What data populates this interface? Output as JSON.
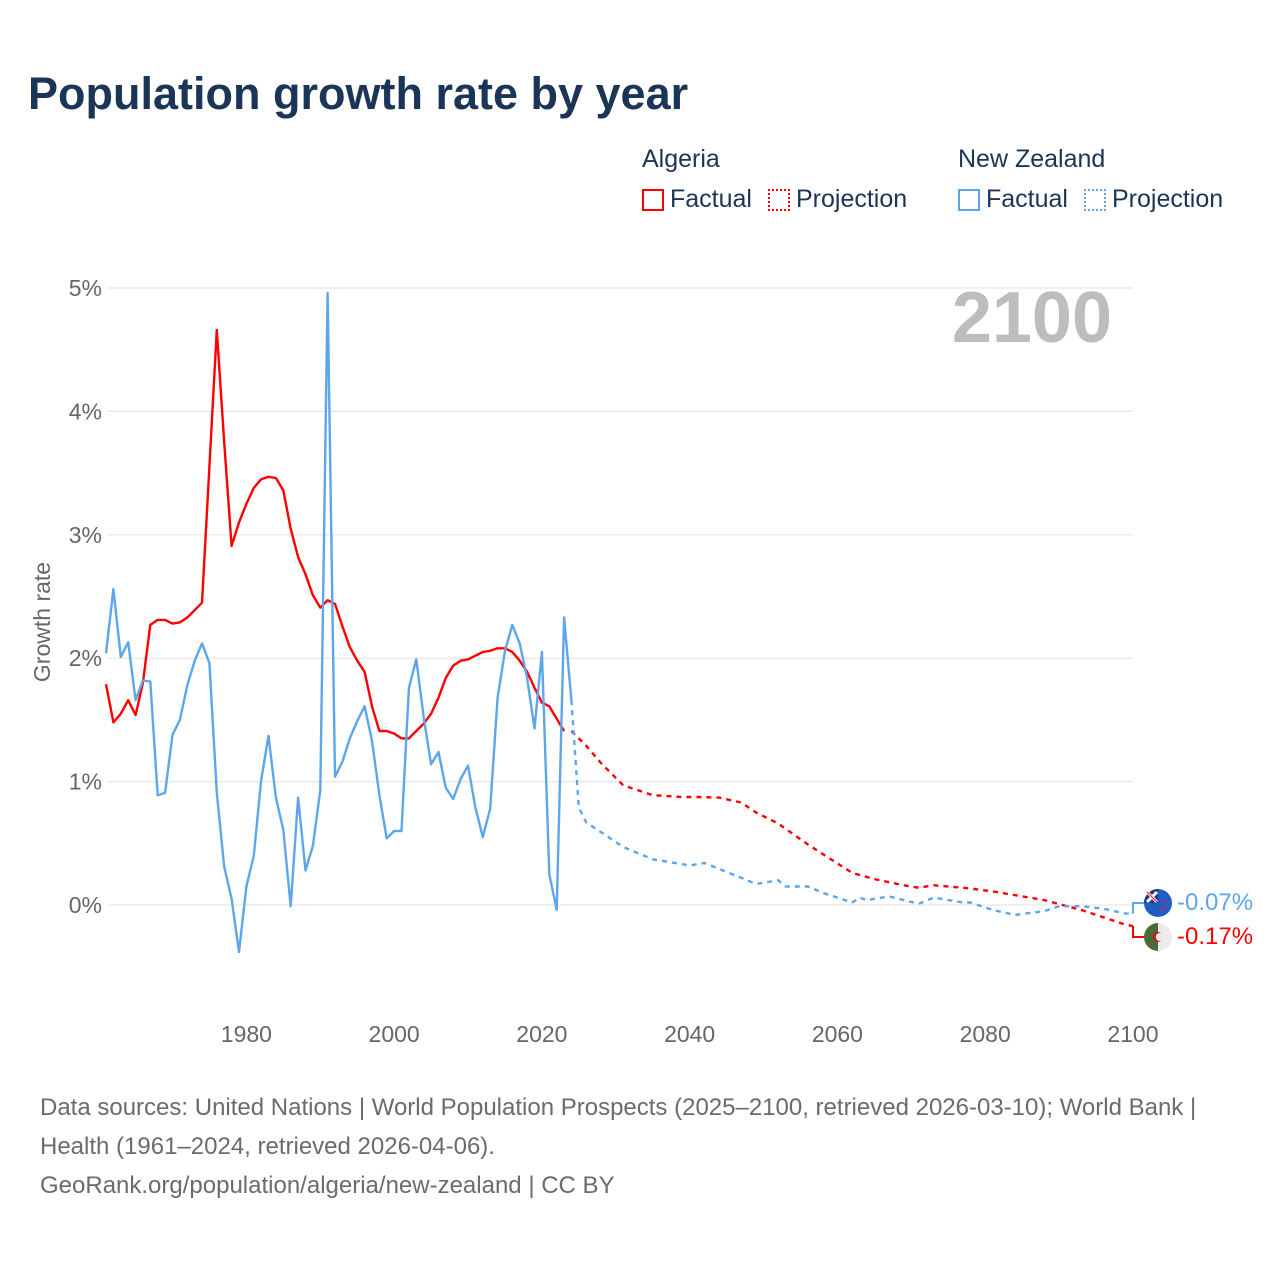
{
  "title": "Population growth rate by year",
  "legend": [
    {
      "group": "Algeria",
      "factual": "Factual",
      "projection": "Projection",
      "color": "#ff0000"
    },
    {
      "group": "New Zealand",
      "factual": "Factual",
      "projection": "Projection",
      "color": "#5ea6ea"
    }
  ],
  "year_label": "2100",
  "end_labels": {
    "new_zealand": "-0.07%",
    "algeria": "-0.17%"
  },
  "footer": {
    "sources": "Data sources: United Nations | World Population Prospects (2025–2100, retrieved 2026-03-10); World Bank | Health (1961–2024, retrieved 2026-04-06).",
    "link": "GeoRank.org/population/algeria/new-zealand | CC BY"
  },
  "chart_data": {
    "type": "line",
    "title": "Population growth rate by year",
    "xlabel": "",
    "ylabel": "Growth rate",
    "xlim": [
      1961,
      2100
    ],
    "ylim": [
      -0.8,
      5.3
    ],
    "x_ticks": [
      1980,
      2000,
      2020,
      2040,
      2060,
      2080,
      2100
    ],
    "y_ticks": [
      {
        "v": 0,
        "label": "0%"
      },
      {
        "v": 1,
        "label": "1%"
      },
      {
        "v": 2,
        "label": "2%"
      },
      {
        "v": 3,
        "label": "3%"
      },
      {
        "v": 4,
        "label": "4%"
      },
      {
        "v": 5,
        "label": "5%"
      }
    ],
    "grid": true,
    "legend_position": "top-right",
    "series": [
      {
        "name": "Algeria",
        "kind": "Factual",
        "color": "#ff0000",
        "dashed": false,
        "start_year": 1961,
        "values": [
          1.79,
          1.48,
          1.55,
          1.66,
          1.54,
          1.8,
          2.27,
          2.31,
          2.31,
          2.28,
          2.29,
          2.33,
          2.39,
          2.45,
          3.55,
          4.66,
          3.75,
          2.91,
          3.1,
          3.25,
          3.38,
          3.45,
          3.47,
          3.46,
          3.36,
          3.05,
          2.82,
          2.68,
          2.51,
          2.41,
          2.47,
          2.44,
          2.26,
          2.09,
          1.98,
          1.89,
          1.61,
          1.41,
          1.41,
          1.39,
          1.35,
          1.35,
          1.41,
          1.47,
          1.55,
          1.68,
          1.84,
          1.94,
          1.98,
          1.99,
          2.02,
          2.05,
          2.06,
          2.08,
          2.08,
          2.05,
          1.98,
          1.89,
          1.76,
          1.64,
          1.61,
          1.51,
          1.41
        ]
      },
      {
        "name": "New Zealand",
        "kind": "Factual",
        "color": "#5ea6ea",
        "dashed": false,
        "start_year": 1961,
        "values": [
          2.04,
          2.56,
          2.01,
          2.13,
          1.66,
          1.82,
          1.81,
          0.89,
          0.91,
          1.38,
          1.5,
          1.78,
          1.98,
          2.12,
          1.96,
          0.91,
          0.31,
          0.05,
          -0.38,
          0.15,
          0.4,
          1.01,
          1.37,
          0.87,
          0.61,
          -0.01,
          0.87,
          0.28,
          0.48,
          0.93,
          4.96,
          1.04,
          1.16,
          1.35,
          1.49,
          1.61,
          1.33,
          0.89,
          0.54,
          0.6,
          0.6,
          1.76,
          1.99,
          1.52,
          1.14,
          1.24,
          0.95,
          0.86,
          1.02,
          1.13,
          0.79,
          0.55,
          0.78,
          1.68,
          2.06,
          2.27,
          2.12,
          1.84,
          1.43,
          2.05,
          0.25,
          -0.04,
          2.33,
          1.66
        ]
      },
      {
        "name": "Algeria",
        "kind": "Projection",
        "color": "#ff0000",
        "dashed": true,
        "x": [
          2024,
          2026,
          2028,
          2031,
          2035,
          2039,
          2041,
          2044,
          2047,
          2049,
          2052,
          2056,
          2062,
          2065,
          2069,
          2071,
          2073,
          2077,
          2081,
          2084,
          2088,
          2093,
          2096,
          2099,
          2100
        ],
        "values": [
          1.41,
          1.29,
          1.15,
          0.97,
          0.89,
          0.875,
          0.875,
          0.87,
          0.83,
          0.75,
          0.66,
          0.49,
          0.26,
          0.21,
          0.16,
          0.14,
          0.16,
          0.14,
          0.11,
          0.08,
          0.04,
          -0.04,
          -0.1,
          -0.16,
          -0.17
        ]
      },
      {
        "name": "New Zealand",
        "kind": "Projection",
        "color": "#5ea6ea",
        "dashed": true,
        "x": [
          2024,
          2025,
          2026,
          2031,
          2035,
          2040,
          2042,
          2047,
          2049,
          2052,
          2053,
          2056,
          2058,
          2062,
          2063,
          2064,
          2067,
          2071,
          2073,
          2077,
          2078,
          2081,
          2084,
          2088,
          2090,
          2093,
          2096,
          2099,
          2100
        ],
        "values": [
          1.66,
          0.79,
          0.67,
          0.47,
          0.37,
          0.32,
          0.34,
          0.22,
          0.17,
          0.2,
          0.15,
          0.15,
          0.1,
          0.02,
          0.06,
          0.04,
          0.07,
          0.01,
          0.06,
          0.02,
          0.02,
          -0.04,
          -0.08,
          -0.05,
          -0.01,
          -0.01,
          -0.03,
          -0.07,
          -0.07
        ]
      }
    ]
  }
}
